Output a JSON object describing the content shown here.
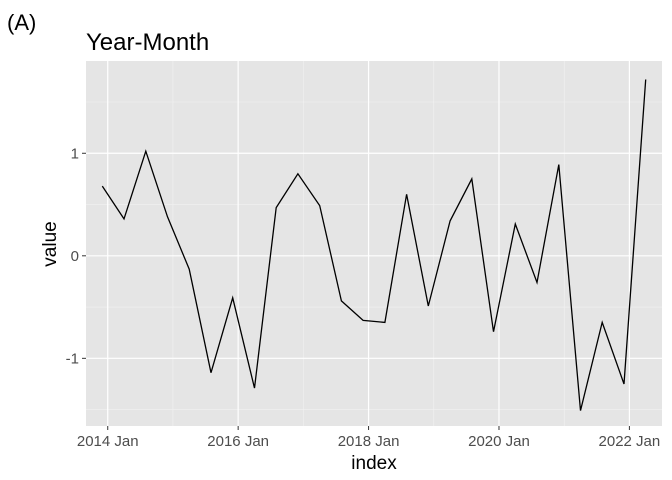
{
  "panel_tag": "(A)",
  "chart_data": {
    "type": "line",
    "title": "Year-Month",
    "xlabel": "index",
    "ylabel": "value",
    "x_tick_labels": [
      "2014 Jan",
      "2016 Jan",
      "2018 Jan",
      "2020 Jan",
      "2022 Jan"
    ],
    "y_tick_labels": [
      "-1",
      "0",
      "1"
    ],
    "y_ticks": [
      -1,
      0,
      1
    ],
    "xlim": [
      "2013-09",
      "2022-07"
    ],
    "ylim": [
      -1.66,
      1.9
    ],
    "grid": true,
    "background": "#e5e5e5",
    "grid_color": "#ffffff",
    "line_color": "#000000",
    "series": [
      {
        "x": [
          "2013-12",
          "2014-04",
          "2014-08",
          "2014-12",
          "2015-04",
          "2015-08",
          "2015-12",
          "2016-04",
          "2016-08",
          "2016-12",
          "2017-04",
          "2017-08",
          "2017-12",
          "2018-04",
          "2018-08",
          "2018-12",
          "2019-04",
          "2019-08",
          "2019-12",
          "2020-04",
          "2020-08",
          "2020-12",
          "2021-04",
          "2021-08",
          "2021-12",
          "2022-04"
        ],
        "values": [
          0.68,
          0.36,
          1.02,
          0.38,
          -0.13,
          -1.14,
          -0.41,
          -1.29,
          0.47,
          0.8,
          0.49,
          -0.44,
          -0.63,
          -0.65,
          0.6,
          -0.49,
          0.34,
          0.75,
          -0.74,
          0.31,
          -0.26,
          0.89,
          -1.51,
          -0.65,
          -1.25,
          1.72
        ]
      }
    ]
  }
}
